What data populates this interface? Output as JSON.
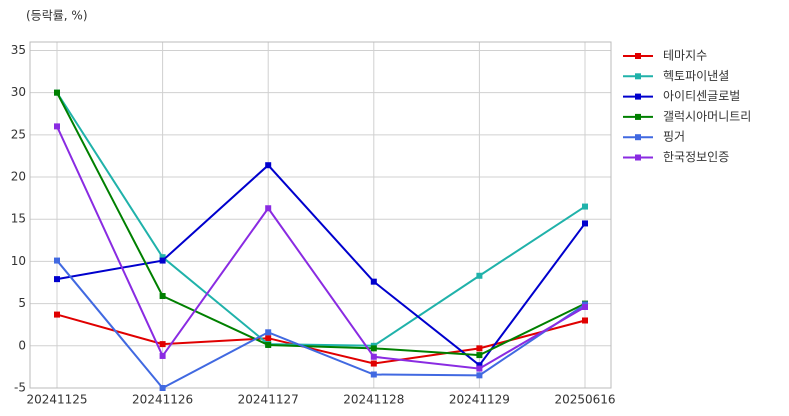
{
  "chart_data": {
    "type": "line",
    "y_label": "(등락률, %)",
    "categories": [
      "20241125",
      "20241126",
      "20241127",
      "20241128",
      "20241129",
      "20250616"
    ],
    "series": [
      {
        "name": "테마지수",
        "color": "#e00000",
        "values": [
          3.7,
          0.2,
          0.9,
          -2.1,
          -0.3,
          3.0
        ]
      },
      {
        "name": "헥토파이낸셜",
        "color": "#20b2aa",
        "values": [
          30,
          10.5,
          0.2,
          0,
          8.3,
          16.5
        ]
      },
      {
        "name": "아이티센글로벌",
        "color": "#0000cd",
        "values": [
          7.9,
          10.1,
          21.4,
          7.6,
          -2.3,
          14.5
        ]
      },
      {
        "name": "갤럭시아머니트리",
        "color": "#008000",
        "values": [
          30,
          5.9,
          0.1,
          -0.3,
          -1.1,
          5.0
        ]
      },
      {
        "name": "핑거",
        "color": "#4169e1",
        "values": [
          10.1,
          -5.0,
          1.6,
          -3.4,
          -3.5,
          4.9
        ]
      },
      {
        "name": "한국정보인증",
        "color": "#8a2be2",
        "values": [
          26,
          -1.2,
          16.3,
          -1.3,
          -2.7,
          4.6
        ]
      }
    ],
    "ylim": [
      -5,
      36
    ],
    "yticks": [
      -5,
      0,
      5,
      10,
      15,
      20,
      25,
      30,
      35
    ],
    "grid": true,
    "legend": "right"
  }
}
